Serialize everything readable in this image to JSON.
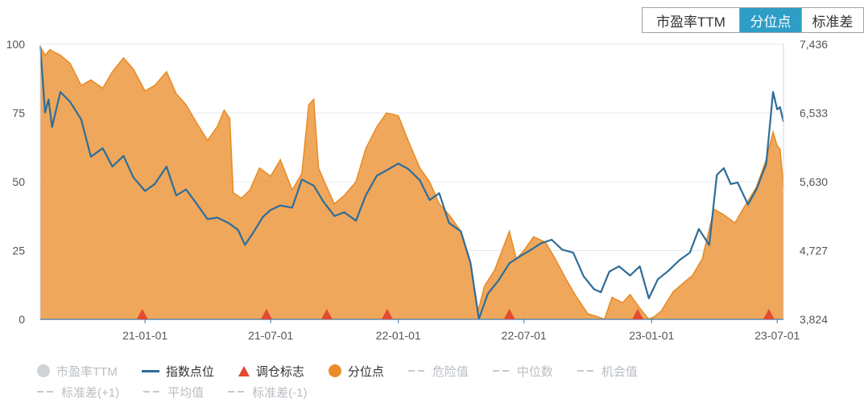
{
  "tabs": [
    {
      "label": "市盈率TTM",
      "active": false
    },
    {
      "label": "分位点",
      "active": true
    },
    {
      "label": "标准差",
      "active": false
    }
  ],
  "legend": {
    "pe_ttm": "市盈率TTM",
    "index_points": "指数点位",
    "rebalance_marks": "调仓标志",
    "percentile": "分位点",
    "danger_value": "危险值",
    "median": "中位数",
    "opportunity_value": "机会值",
    "std_plus1": "标准差(+1)",
    "average": "平均值",
    "std_minus1": "标准差(-1)"
  },
  "colors": {
    "percentile_fill": "#eea253",
    "percentile_line": "#e88d28",
    "index_line": "#2e6d98",
    "rebalance_marker": "#e24a33",
    "active_tab": "#2f9ec7",
    "muted_text": "#b9bec3"
  },
  "chart_data": {
    "type": "area",
    "x_tick_labels": [
      "21-01-01",
      "21-07-01",
      "22-01-01",
      "22-07-01",
      "23-01-01",
      "23-07-01"
    ],
    "x_tick_dates": [
      "2021-01-01",
      "2021-07-01",
      "2022-01-01",
      "2022-07-01",
      "2023-01-01",
      "2023-07-01"
    ],
    "x_range": [
      "2020-08-03",
      "2023-07-10"
    ],
    "y_left": {
      "ticks": [
        "0",
        "25",
        "50",
        "75",
        "100"
      ],
      "range": [
        0,
        100
      ]
    },
    "y_right": {
      "ticks": [
        "3,824",
        "4,727",
        "5,630",
        "6,533",
        "7,436"
      ],
      "range": [
        3824,
        7436
      ]
    },
    "rebalance_dates": [
      "2020-12-28",
      "2021-06-25",
      "2021-09-20",
      "2021-12-16",
      "2022-06-10",
      "2022-12-12",
      "2023-06-19"
    ],
    "series": [
      {
        "name": "分位点",
        "axis": "left",
        "kind": "area",
        "points": [
          [
            "2020-08-03",
            99
          ],
          [
            "2020-08-10",
            96
          ],
          [
            "2020-08-17",
            98
          ],
          [
            "2020-08-24",
            97
          ],
          [
            "2020-09-01",
            96
          ],
          [
            "2020-09-15",
            93
          ],
          [
            "2020-10-01",
            85
          ],
          [
            "2020-10-15",
            87
          ],
          [
            "2020-11-01",
            84
          ],
          [
            "2020-11-15",
            90
          ],
          [
            "2020-12-01",
            95
          ],
          [
            "2020-12-15",
            91
          ],
          [
            "2021-01-01",
            83
          ],
          [
            "2021-01-15",
            85
          ],
          [
            "2021-02-01",
            90
          ],
          [
            "2021-02-15",
            82
          ],
          [
            "2021-03-01",
            78
          ],
          [
            "2021-03-15",
            72
          ],
          [
            "2021-04-01",
            65
          ],
          [
            "2021-04-15",
            70
          ],
          [
            "2021-04-25",
            76
          ],
          [
            "2021-05-03",
            73
          ],
          [
            "2021-05-08",
            46
          ],
          [
            "2021-05-20",
            44
          ],
          [
            "2021-06-01",
            47
          ],
          [
            "2021-06-15",
            55
          ],
          [
            "2021-07-01",
            52
          ],
          [
            "2021-07-15",
            58
          ],
          [
            "2021-08-01",
            47
          ],
          [
            "2021-08-15",
            53
          ],
          [
            "2021-08-25",
            78
          ],
          [
            "2021-09-01",
            80
          ],
          [
            "2021-09-08",
            55
          ],
          [
            "2021-09-20",
            48
          ],
          [
            "2021-10-01",
            42
          ],
          [
            "2021-10-15",
            45
          ],
          [
            "2021-11-01",
            50
          ],
          [
            "2021-11-15",
            62
          ],
          [
            "2021-12-01",
            70
          ],
          [
            "2021-12-15",
            75
          ],
          [
            "2022-01-01",
            74
          ],
          [
            "2022-01-15",
            65
          ],
          [
            "2022-02-01",
            55
          ],
          [
            "2022-02-15",
            50
          ],
          [
            "2022-03-01",
            42
          ],
          [
            "2022-03-15",
            38
          ],
          [
            "2022-04-01",
            32
          ],
          [
            "2022-04-15",
            20
          ],
          [
            "2022-04-26",
            3
          ],
          [
            "2022-05-05",
            12
          ],
          [
            "2022-05-20",
            18
          ],
          [
            "2022-06-01",
            26
          ],
          [
            "2022-06-10",
            32
          ],
          [
            "2022-06-20",
            22
          ],
          [
            "2022-07-01",
            25
          ],
          [
            "2022-07-15",
            30
          ],
          [
            "2022-08-01",
            28
          ],
          [
            "2022-08-15",
            22
          ],
          [
            "2022-09-01",
            14
          ],
          [
            "2022-09-15",
            8
          ],
          [
            "2022-10-01",
            2
          ],
          [
            "2022-10-15",
            1
          ],
          [
            "2022-10-25",
            0
          ],
          [
            "2022-11-05",
            8
          ],
          [
            "2022-11-20",
            6
          ],
          [
            "2022-12-01",
            9
          ],
          [
            "2022-12-15",
            4
          ],
          [
            "2022-12-28",
            0
          ],
          [
            "2023-01-05",
            1
          ],
          [
            "2023-01-15",
            3
          ],
          [
            "2023-02-01",
            10
          ],
          [
            "2023-02-15",
            13
          ],
          [
            "2023-03-01",
            16
          ],
          [
            "2023-03-15",
            22
          ],
          [
            "2023-04-01",
            40
          ],
          [
            "2023-04-15",
            38
          ],
          [
            "2023-05-01",
            35
          ],
          [
            "2023-05-15",
            41
          ],
          [
            "2023-06-01",
            48
          ],
          [
            "2023-06-15",
            58
          ],
          [
            "2023-06-25",
            68
          ],
          [
            "2023-07-01",
            63
          ],
          [
            "2023-07-05",
            62
          ],
          [
            "2023-07-10",
            48
          ]
        ]
      },
      {
        "name": "指数点位",
        "axis": "right",
        "kind": "line",
        "points": [
          [
            "2020-08-03",
            7410
          ],
          [
            "2020-08-10",
            6540
          ],
          [
            "2020-08-15",
            6710
          ],
          [
            "2020-08-20",
            6350
          ],
          [
            "2020-09-01",
            6810
          ],
          [
            "2020-09-15",
            6680
          ],
          [
            "2020-10-01",
            6450
          ],
          [
            "2020-10-15",
            5960
          ],
          [
            "2020-11-01",
            6070
          ],
          [
            "2020-11-15",
            5830
          ],
          [
            "2020-12-01",
            5970
          ],
          [
            "2020-12-15",
            5690
          ],
          [
            "2021-01-01",
            5510
          ],
          [
            "2021-01-15",
            5600
          ],
          [
            "2021-02-01",
            5830
          ],
          [
            "2021-02-15",
            5450
          ],
          [
            "2021-03-01",
            5530
          ],
          [
            "2021-03-15",
            5360
          ],
          [
            "2021-04-01",
            5140
          ],
          [
            "2021-04-15",
            5160
          ],
          [
            "2021-05-01",
            5090
          ],
          [
            "2021-05-15",
            5000
          ],
          [
            "2021-05-25",
            4800
          ],
          [
            "2021-06-05",
            4950
          ],
          [
            "2021-06-20",
            5170
          ],
          [
            "2021-07-01",
            5260
          ],
          [
            "2021-07-15",
            5320
          ],
          [
            "2021-08-01",
            5290
          ],
          [
            "2021-08-15",
            5660
          ],
          [
            "2021-09-01",
            5580
          ],
          [
            "2021-09-15",
            5370
          ],
          [
            "2021-10-01",
            5180
          ],
          [
            "2021-10-15",
            5230
          ],
          [
            "2021-11-01",
            5120
          ],
          [
            "2021-11-15",
            5450
          ],
          [
            "2021-12-01",
            5710
          ],
          [
            "2021-12-15",
            5780
          ],
          [
            "2022-01-01",
            5870
          ],
          [
            "2022-01-15",
            5800
          ],
          [
            "2022-02-01",
            5650
          ],
          [
            "2022-02-15",
            5390
          ],
          [
            "2022-03-01",
            5480
          ],
          [
            "2022-03-15",
            5090
          ],
          [
            "2022-04-01",
            4980
          ],
          [
            "2022-04-15",
            4570
          ],
          [
            "2022-04-27",
            3830
          ],
          [
            "2022-05-10",
            4160
          ],
          [
            "2022-05-25",
            4330
          ],
          [
            "2022-06-10",
            4560
          ],
          [
            "2022-06-25",
            4650
          ],
          [
            "2022-07-10",
            4730
          ],
          [
            "2022-07-25",
            4820
          ],
          [
            "2022-08-10",
            4870
          ],
          [
            "2022-08-25",
            4740
          ],
          [
            "2022-09-10",
            4700
          ],
          [
            "2022-09-25",
            4390
          ],
          [
            "2022-10-10",
            4220
          ],
          [
            "2022-10-20",
            4180
          ],
          [
            "2022-11-01",
            4450
          ],
          [
            "2022-11-15",
            4520
          ],
          [
            "2022-12-01",
            4400
          ],
          [
            "2022-12-15",
            4520
          ],
          [
            "2022-12-28",
            4100
          ],
          [
            "2023-01-10",
            4350
          ],
          [
            "2023-01-25",
            4460
          ],
          [
            "2023-02-10",
            4600
          ],
          [
            "2023-02-25",
            4700
          ],
          [
            "2023-03-10",
            5010
          ],
          [
            "2023-03-25",
            4800
          ],
          [
            "2023-04-05",
            5720
          ],
          [
            "2023-04-15",
            5810
          ],
          [
            "2023-04-25",
            5600
          ],
          [
            "2023-05-05",
            5620
          ],
          [
            "2023-05-20",
            5330
          ],
          [
            "2023-06-01",
            5530
          ],
          [
            "2023-06-15",
            5860
          ],
          [
            "2023-06-25",
            6810
          ],
          [
            "2023-07-01",
            6580
          ],
          [
            "2023-07-05",
            6610
          ],
          [
            "2023-07-10",
            6420
          ]
        ]
      }
    ]
  }
}
